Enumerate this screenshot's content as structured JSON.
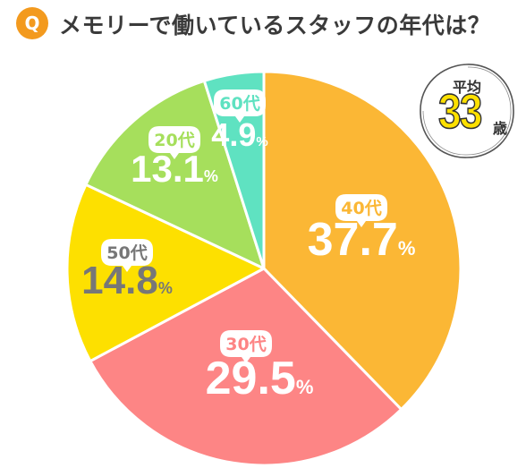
{
  "question": {
    "badge": "Q",
    "text": "メモリーで働いているスタッフの年代は？"
  },
  "average": {
    "label": "平均",
    "value": "33",
    "unit": "歳"
  },
  "chart_data": {
    "type": "pie",
    "slices": [
      {
        "label": "40代",
        "value": 37.7,
        "display": "37.7%",
        "color": "#fbb735"
      },
      {
        "label": "30代",
        "value": 29.5,
        "display": "29.5%",
        "color": "#fd8585"
      },
      {
        "label": "50代",
        "value": 14.8,
        "display": "14.8%",
        "color": "#fde000"
      },
      {
        "label": "20代",
        "value": 13.1,
        "display": "13.1%",
        "color": "#a6df5c"
      },
      {
        "label": "60代",
        "value": 4.9,
        "display": "4.9%",
        "color": "#5fe2c1"
      }
    ],
    "label_style": {
      "age_badge_bg": "#ffffff",
      "age_text_color_default": "#ffffff"
    }
  }
}
